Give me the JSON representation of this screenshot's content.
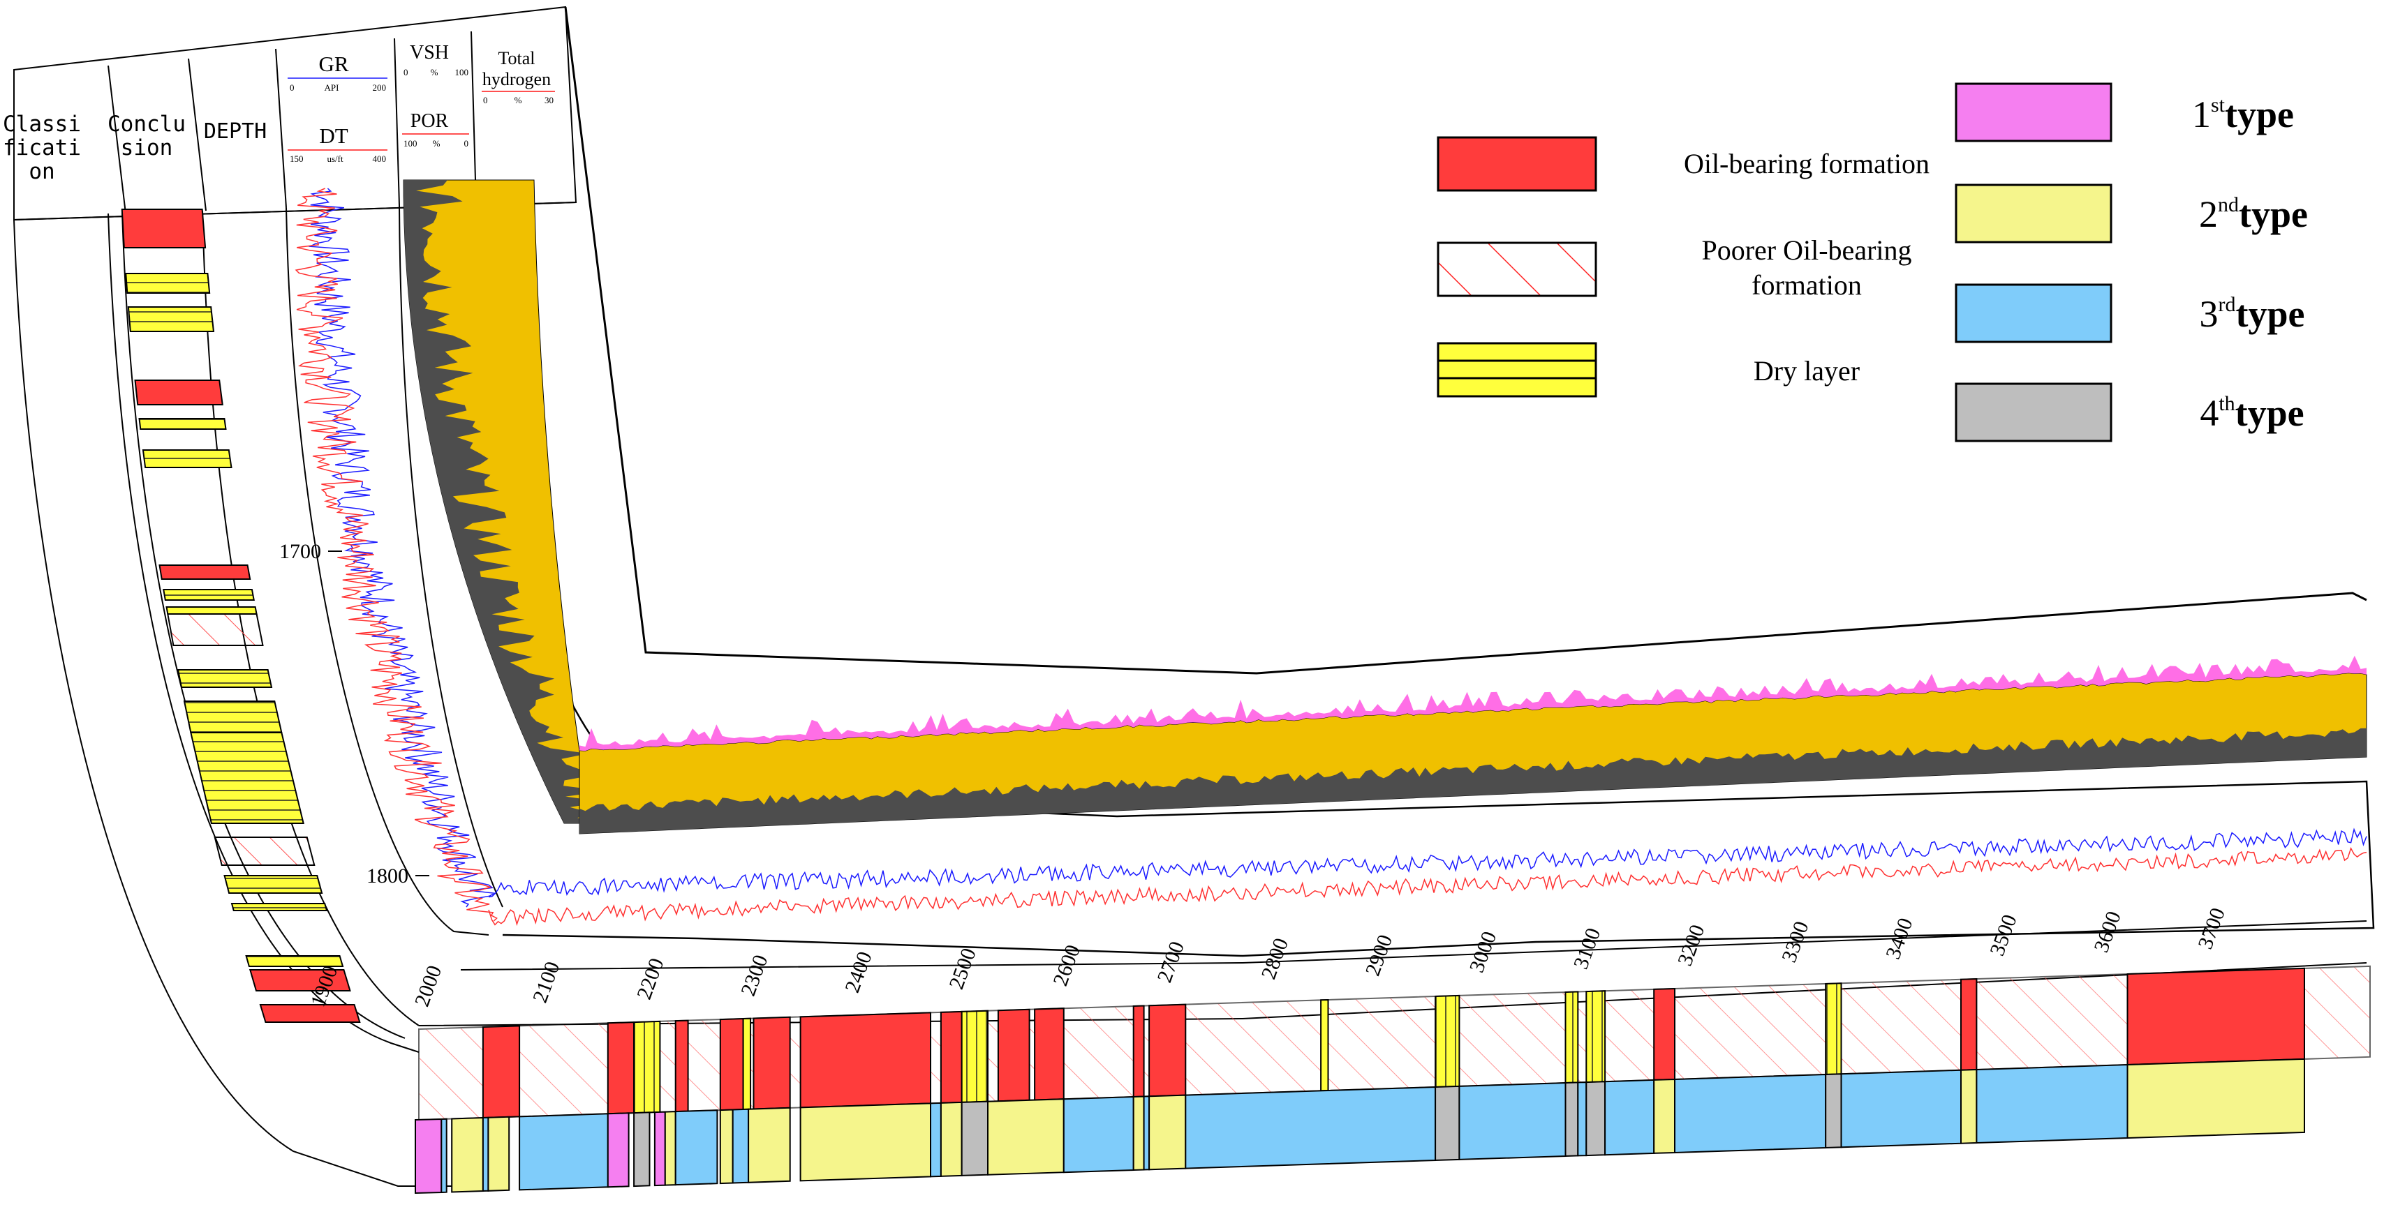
{
  "track_headers": {
    "classification": [
      "Classi",
      "ficati",
      "on"
    ],
    "conclusion": [
      "Conclu",
      "sion"
    ],
    "depth": "DEPTH",
    "gr": {
      "name": "GR",
      "min": "0",
      "unit": "API",
      "max": "200"
    },
    "dt": {
      "name": "DT",
      "min": "150",
      "unit": "us/ft",
      "max": "400"
    },
    "vsh": {
      "name": "VSH",
      "min": "0",
      "unit": "%",
      "max": "100"
    },
    "por": {
      "name": "POR",
      "min": "100",
      "unit": "%",
      "max": "0"
    },
    "total_hydrogen": {
      "name": [
        "Total",
        "hydrogen"
      ],
      "min": "0",
      "unit": "%",
      "max": "30"
    }
  },
  "depth_labels": [
    "1700",
    "1800",
    "1900",
    "2000",
    "2100",
    "2200",
    "2300",
    "2400",
    "2500",
    "2600",
    "2700",
    "2800",
    "2900",
    "3000",
    "3100",
    "3200",
    "3300",
    "3400",
    "3500",
    "3600",
    "3700"
  ],
  "legend": {
    "conclusion": [
      {
        "label": "Oil-bearing formation",
        "pattern": "solid-red"
      },
      {
        "label": [
          "Poorer Oil-bearing",
          "formation"
        ],
        "pattern": "red-hatch"
      },
      {
        "label": "Dry layer",
        "pattern": "yellow-stripes"
      }
    ],
    "classification": [
      {
        "num": "1",
        "sup": "st",
        "word": "type",
        "color": "#f57ff0"
      },
      {
        "num": "2",
        "sup": "nd",
        "word": "type",
        "color": "#f5f58c"
      },
      {
        "num": "3",
        "sup": "rd",
        "word": "type",
        "color": "#7fccfa"
      },
      {
        "num": "4",
        "sup": "th",
        "word": "type",
        "color": "#bebebe"
      }
    ]
  },
  "colors": {
    "oil": "#ff3c3c",
    "dry": "#ffff3c",
    "type1": "#f57ff0",
    "type2": "#f5f58c",
    "type3": "#7fccfa",
    "type4": "#bebebe",
    "sand": "#f0c000",
    "shale": "#4d4d4d",
    "gr_curve": "#1a1aff",
    "dt_curve": "#ff3030",
    "hydrogen": "#ff6ee6"
  },
  "horizontal_section": {
    "conclusion_intervals": [
      [
        "oil",
        2040,
        2075
      ],
      [
        "oil",
        2160,
        2185
      ],
      [
        "dry",
        2185,
        2210
      ],
      [
        "oil",
        2225,
        2237
      ],
      [
        "oil",
        2268,
        2290
      ],
      [
        "dry",
        2290,
        2297
      ],
      [
        "oil",
        2300,
        2335
      ],
      [
        "oil",
        2345,
        2470
      ],
      [
        "oil",
        2480,
        2500
      ],
      [
        "dry",
        2500,
        2525
      ],
      [
        "oil",
        2535,
        2565
      ],
      [
        "oil",
        2570,
        2598
      ],
      [
        "oil",
        2665,
        2675
      ],
      [
        "oil",
        2680,
        2715
      ],
      [
        "dry",
        2845,
        2852
      ],
      [
        "dry",
        2955,
        2978
      ],
      [
        "dry",
        3080,
        3092
      ],
      [
        "dry",
        3100,
        3118
      ],
      [
        "oil",
        3165,
        3185
      ],
      [
        "dry",
        3330,
        3345
      ],
      [
        "oil",
        3460,
        3475
      ],
      [
        "oil",
        3620,
        3790
      ]
    ],
    "classification_intervals": [
      [
        "type1",
        1975,
        2000
      ],
      [
        "type3",
        2000,
        2005
      ],
      [
        "type2",
        2010,
        2040
      ],
      [
        "type3",
        2040,
        2045
      ],
      [
        "type2",
        2045,
        2065
      ],
      [
        "type3",
        2075,
        2160
      ],
      [
        "type1",
        2160,
        2180
      ],
      [
        "type4",
        2185,
        2200
      ],
      [
        "type1",
        2205,
        2215
      ],
      [
        "type2",
        2215,
        2225
      ],
      [
        "type3",
        2225,
        2265
      ],
      [
        "type2",
        2268,
        2280
      ],
      [
        "type3",
        2280,
        2295
      ],
      [
        "type2",
        2295,
        2335
      ],
      [
        "type2",
        2345,
        2470
      ],
      [
        "type3",
        2470,
        2480
      ],
      [
        "type2",
        2480,
        2500
      ],
      [
        "type4",
        2500,
        2525
      ],
      [
        "type2",
        2525,
        2598
      ],
      [
        "type3",
        2598,
        2665
      ],
      [
        "type2",
        2665,
        2675
      ],
      [
        "type3",
        2675,
        2680
      ],
      [
        "type2",
        2680,
        2715
      ],
      [
        "type3",
        2715,
        2955
      ],
      [
        "type4",
        2955,
        2978
      ],
      [
        "type3",
        2978,
        3080
      ],
      [
        "type4",
        3080,
        3092
      ],
      [
        "type3",
        3092,
        3100
      ],
      [
        "type4",
        3100,
        3118
      ],
      [
        "type3",
        3118,
        3165
      ],
      [
        "type2",
        3165,
        3185
      ],
      [
        "type3",
        3185,
        3330
      ],
      [
        "type4",
        3330,
        3345
      ],
      [
        "type3",
        3345,
        3460
      ],
      [
        "type2",
        3460,
        3475
      ],
      [
        "type3",
        3475,
        3620
      ],
      [
        "type2",
        3620,
        3790
      ]
    ]
  }
}
